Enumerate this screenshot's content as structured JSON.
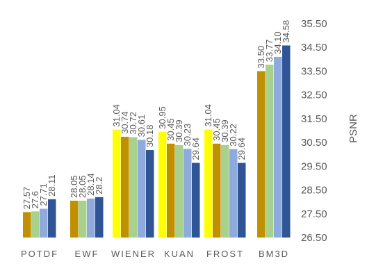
{
  "chart_data": {
    "type": "bar",
    "title": "",
    "xlabel": "",
    "ylabel": "PSNR",
    "y_axis_side": "right",
    "ylim": [
      26.5,
      35.5
    ],
    "yticks": [
      "26.50",
      "27.50",
      "28.50",
      "29.50",
      "30.50",
      "31.50",
      "32.50",
      "33.50",
      "34.50",
      "35.50"
    ],
    "legend": "none",
    "grid": false,
    "categories": [
      {
        "name": "POTDF",
        "bars": [
          {
            "value": 27.57,
            "label": "27.57",
            "color": "#bf9000"
          },
          {
            "value": 27.6,
            "label": "27.6",
            "color": "#a9d18e"
          },
          {
            "value": 27.71,
            "label": "27.71",
            "color": "#8faadc"
          },
          {
            "value": 28.11,
            "label": "28.11",
            "color": "#2f5597"
          }
        ]
      },
      {
        "name": "EWF",
        "bars": [
          {
            "value": 28.05,
            "label": "28.05",
            "color": "#bf9000"
          },
          {
            "value": 28.05,
            "label": "28.05",
            "color": "#a9d18e"
          },
          {
            "value": 28.14,
            "label": "28.14",
            "color": "#8faadc"
          },
          {
            "value": 28.2,
            "label": "28.2",
            "color": "#2f5597"
          }
        ]
      },
      {
        "name": "WIENER",
        "bars": [
          {
            "value": 31.04,
            "label": "31.04",
            "color": "#ffff00"
          },
          {
            "value": 30.74,
            "label": "30.74",
            "color": "#bf9000"
          },
          {
            "value": 30.72,
            "label": "30.72",
            "color": "#a9d18e"
          },
          {
            "value": 30.61,
            "label": "30.61",
            "color": "#8faadc"
          },
          {
            "value": 30.18,
            "label": "30.18",
            "color": "#2f5597"
          }
        ]
      },
      {
        "name": "KUAN",
        "bars": [
          {
            "value": 30.95,
            "label": "30.95",
            "color": "#ffff00"
          },
          {
            "value": 30.45,
            "label": "30.45",
            "color": "#bf9000"
          },
          {
            "value": 30.39,
            "label": "30.39",
            "color": "#a9d18e"
          },
          {
            "value": 30.23,
            "label": "30.23",
            "color": "#8faadc"
          },
          {
            "value": 29.64,
            "label": "29.64",
            "color": "#2f5597"
          }
        ]
      },
      {
        "name": "FROST",
        "bars": [
          {
            "value": 31.04,
            "label": "31.04",
            "color": "#ffff00"
          },
          {
            "value": 30.45,
            "label": "30.45",
            "color": "#bf9000"
          },
          {
            "value": 30.39,
            "label": "30.39",
            "color": "#a9d18e"
          },
          {
            "value": 30.22,
            "label": "30.22",
            "color": "#8faadc"
          },
          {
            "value": 29.64,
            "label": "29.64",
            "color": "#2f5597"
          }
        ]
      },
      {
        "name": "BM3D",
        "bars": [
          {
            "value": 33.5,
            "label": "33.50",
            "color": "#bf9000"
          },
          {
            "value": 33.77,
            "label": "33.77",
            "color": "#a9d18e"
          },
          {
            "value": 34.1,
            "label": "34.10",
            "color": "#8faadc"
          },
          {
            "value": 34.58,
            "label": "34.58",
            "color": "#2f5597"
          }
        ]
      }
    ]
  }
}
